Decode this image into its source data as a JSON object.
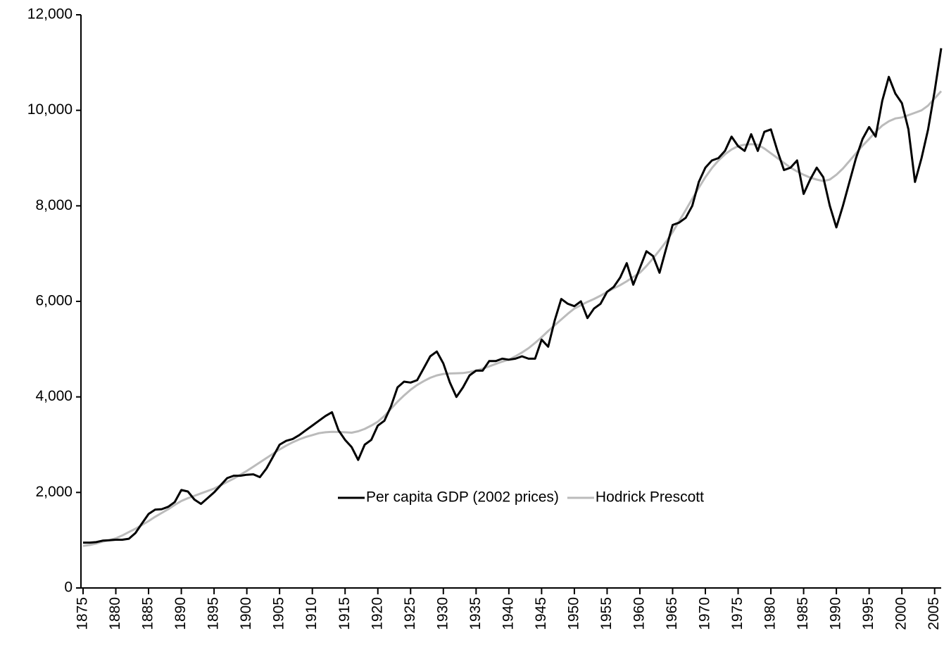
{
  "chart_data": {
    "type": "line",
    "x": [
      1875,
      1876,
      1877,
      1878,
      1879,
      1880,
      1881,
      1882,
      1883,
      1884,
      1885,
      1886,
      1887,
      1888,
      1889,
      1890,
      1891,
      1892,
      1893,
      1894,
      1895,
      1896,
      1897,
      1898,
      1899,
      1900,
      1901,
      1902,
      1903,
      1904,
      1905,
      1906,
      1907,
      1908,
      1909,
      1910,
      1911,
      1912,
      1913,
      1914,
      1915,
      1916,
      1917,
      1918,
      1919,
      1920,
      1921,
      1922,
      1923,
      1924,
      1925,
      1926,
      1927,
      1928,
      1929,
      1930,
      1931,
      1932,
      1933,
      1934,
      1935,
      1936,
      1937,
      1938,
      1939,
      1940,
      1941,
      1942,
      1943,
      1944,
      1945,
      1946,
      1947,
      1948,
      1949,
      1950,
      1951,
      1952,
      1953,
      1954,
      1955,
      1956,
      1957,
      1958,
      1959,
      1960,
      1961,
      1962,
      1963,
      1964,
      1965,
      1966,
      1967,
      1968,
      1969,
      1970,
      1971,
      1972,
      1973,
      1974,
      1975,
      1976,
      1977,
      1978,
      1979,
      1980,
      1981,
      1982,
      1983,
      1984,
      1985,
      1986,
      1987,
      1988,
      1989,
      1990,
      1991,
      1992,
      1993,
      1994,
      1995,
      1996,
      1997,
      1998,
      1999,
      2000,
      2001,
      2002,
      2003,
      2004,
      2005,
      2006
    ],
    "series": [
      {
        "name": "Per capita GDP (2002 prices)",
        "color": "#000000",
        "values": [
          950,
          950,
          960,
          990,
          1000,
          1010,
          1010,
          1030,
          1150,
          1350,
          1550,
          1640,
          1650,
          1700,
          1800,
          2050,
          2020,
          1850,
          1760,
          1880,
          2000,
          2150,
          2300,
          2350,
          2350,
          2370,
          2380,
          2320,
          2500,
          2750,
          3000,
          3080,
          3120,
          3200,
          3300,
          3400,
          3500,
          3600,
          3680,
          3300,
          3100,
          2950,
          2680,
          3000,
          3100,
          3400,
          3500,
          3800,
          4200,
          4320,
          4300,
          4350,
          4600,
          4850,
          4950,
          4700,
          4300,
          4000,
          4200,
          4450,
          4550,
          4550,
          4750,
          4750,
          4800,
          4780,
          4800,
          4850,
          4800,
          4800,
          5200,
          5050,
          5600,
          6050,
          5950,
          5900,
          6000,
          5650,
          5850,
          5950,
          6200,
          6300,
          6500,
          6800,
          6350,
          6700,
          7050,
          6950,
          6600,
          7100,
          7600,
          7650,
          7750,
          8000,
          8500,
          8800,
          8950,
          9000,
          9150,
          9450,
          9250,
          9150,
          9500,
          9150,
          9550,
          9600,
          9150,
          8750,
          8800,
          8950,
          8250,
          8550,
          8800,
          8600,
          8000,
          7550,
          8000,
          8500,
          9000,
          9400,
          9650,
          9450,
          10200,
          10700,
          10350,
          10150,
          9600,
          8500,
          9000,
          9600,
          10400,
          11300
        ]
      },
      {
        "name": "Hodrick Prescott",
        "color": "#bbbbbb",
        "values": [
          880,
          900,
          930,
          970,
          1000,
          1040,
          1100,
          1170,
          1240,
          1320,
          1400,
          1490,
          1570,
          1650,
          1740,
          1820,
          1880,
          1930,
          1980,
          2030,
          2080,
          2150,
          2220,
          2290,
          2370,
          2450,
          2540,
          2630,
          2720,
          2810,
          2900,
          2980,
          3050,
          3110,
          3160,
          3200,
          3240,
          3260,
          3270,
          3265,
          3260,
          3250,
          3280,
          3330,
          3400,
          3480,
          3600,
          3750,
          3900,
          4030,
          4150,
          4250,
          4330,
          4400,
          4450,
          4480,
          4490,
          4495,
          4500,
          4520,
          4550,
          4590,
          4640,
          4690,
          4740,
          4780,
          4850,
          4930,
          5020,
          5130,
          5250,
          5380,
          5500,
          5620,
          5740,
          5850,
          5920,
          5990,
          6050,
          6120,
          6200,
          6270,
          6340,
          6420,
          6510,
          6600,
          6740,
          6900,
          7070,
          7250,
          7450,
          7680,
          7910,
          8150,
          8380,
          8600,
          8790,
          8950,
          9080,
          9180,
          9250,
          9280,
          9290,
          9280,
          9200,
          9100,
          9000,
          8900,
          8800,
          8720,
          8650,
          8590,
          8550,
          8520,
          8550,
          8650,
          8780,
          8940,
          9100,
          9260,
          9400,
          9550,
          9680,
          9770,
          9830,
          9850,
          9900,
          9950,
          10000,
          10100,
          10250,
          10400
        ]
      }
    ],
    "xlim": [
      1875,
      2006
    ],
    "xticks": [
      1875,
      1880,
      1885,
      1890,
      1895,
      1900,
      1905,
      1910,
      1915,
      1920,
      1925,
      1930,
      1935,
      1940,
      1945,
      1950,
      1955,
      1960,
      1965,
      1970,
      1975,
      1980,
      1985,
      1990,
      1995,
      2000,
      2005
    ],
    "ylim": [
      0,
      12000
    ],
    "yticks": [
      0,
      {
        "value": 2000,
        "label": "2,000"
      },
      {
        "value": 4000,
        "label": "4,000"
      },
      {
        "value": 6000,
        "label": "6,000"
      },
      {
        "value": 8000,
        "label": "8,000"
      },
      {
        "value": 10000,
        "label": "10,000"
      },
      {
        "value": 12000,
        "label": "12,000"
      }
    ],
    "legend": "center",
    "grid": false
  }
}
